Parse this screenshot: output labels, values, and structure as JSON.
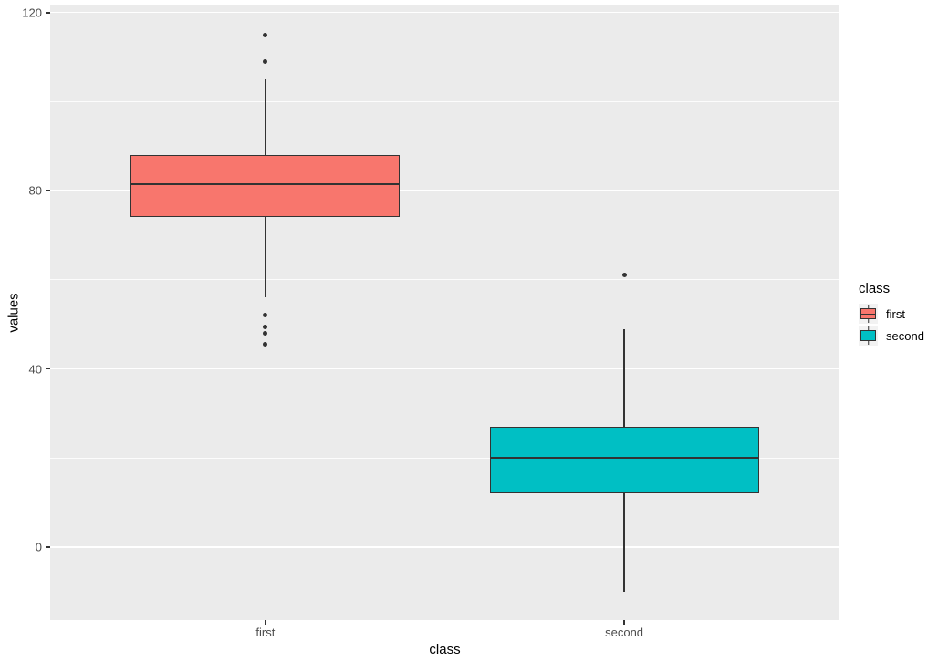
{
  "chart_data": {
    "type": "boxplot",
    "title": "",
    "xlabel": "class",
    "ylabel": "values",
    "categories": [
      "first",
      "second"
    ],
    "x_positions": [
      1,
      2
    ],
    "xlim": [
      0.4,
      2.6
    ],
    "ylim": [
      -16.4,
      121.8
    ],
    "yticks": [
      0,
      40,
      80,
      120
    ],
    "y_minor_gridlines": [
      20,
      60,
      100
    ],
    "box_width": 0.75,
    "grid": true,
    "legend": {
      "title": "class",
      "position": "right",
      "entries": [
        {
          "label": "first",
          "color": "#F8766D"
        },
        {
          "label": "second",
          "color": "#00BFC4"
        }
      ]
    },
    "series": [
      {
        "name": "first",
        "x": 1,
        "min": 56,
        "q1": 74,
        "median": 81.5,
        "q3": 88,
        "max": 105,
        "outliers": [
          115,
          109,
          52,
          49.5,
          48,
          45.5
        ],
        "fill": "#F8766D"
      },
      {
        "name": "second",
        "x": 2,
        "min": -10,
        "q1": 12,
        "median": 20,
        "q3": 27,
        "max": 49,
        "outliers": [
          61
        ],
        "fill": "#00BFC4"
      }
    ],
    "colors": {
      "panel_bg": "#EBEBEB",
      "gridline": "#FFFFFF",
      "box_border": "#333333",
      "median": "#333333",
      "outlier": "#333333",
      "tick_mark": "#333333",
      "tick_text": "#4D4D4D",
      "axis_title_text": "#000000",
      "legend_title_text": "#000000",
      "legend_label_text": "#000000",
      "legend_key_bg": "#F2F2F2",
      "figure_bg": "#FFFFFF"
    }
  }
}
